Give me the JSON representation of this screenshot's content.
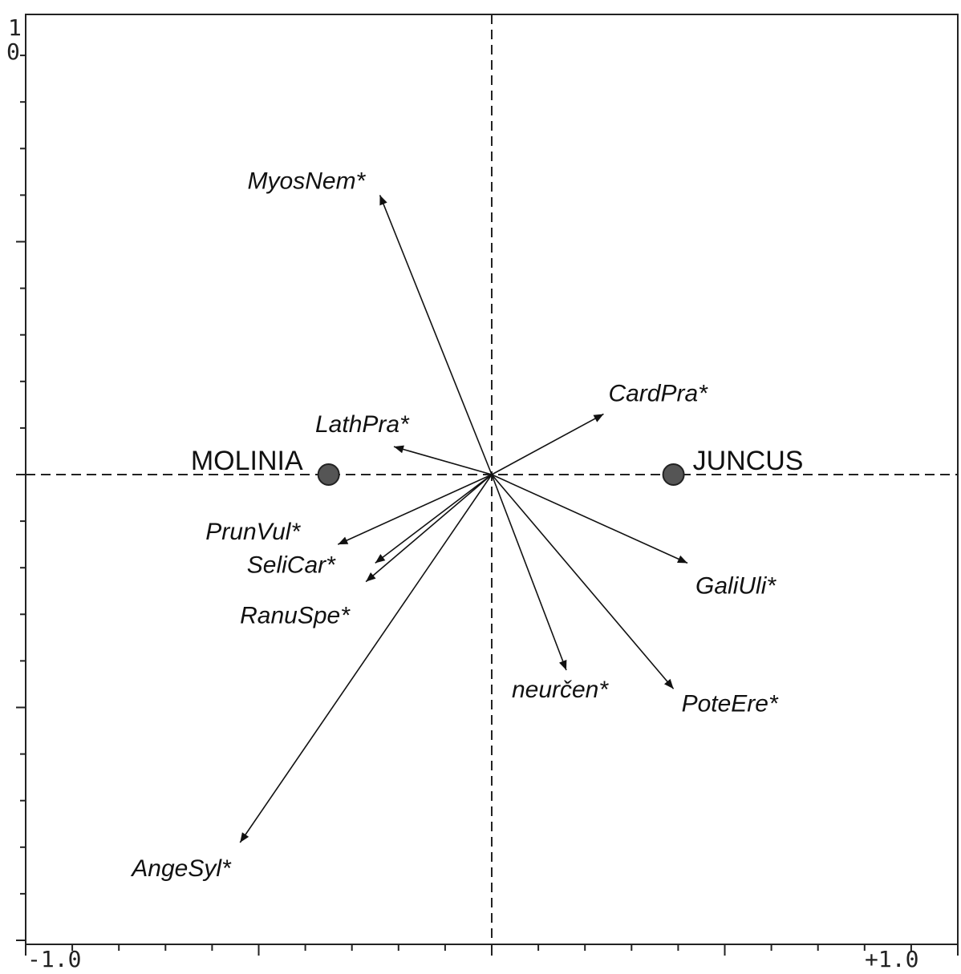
{
  "chart_data": {
    "type": "scatter",
    "title": "",
    "xlabel": "",
    "ylabel": "",
    "xlim": [
      -1.0,
      1.0
    ],
    "ylim": [
      -1.0,
      1.0
    ],
    "x_tick_labels": [
      "-1.0",
      "+1.0"
    ],
    "y_tick_labels": [
      "1",
      "0"
    ],
    "grid": false,
    "origin_lines": "dashed",
    "series": [
      {
        "kind": "arrows",
        "points": [
          {
            "label": "MyosNem*",
            "x": -0.24,
            "y": 0.6
          },
          {
            "label": "CardPra*",
            "x": 0.24,
            "y": 0.13
          },
          {
            "label": "LathPra*",
            "x": -0.21,
            "y": 0.06
          },
          {
            "label": "PrunVul*",
            "x": -0.33,
            "y": -0.15
          },
          {
            "label": "SeliCar*",
            "x": -0.25,
            "y": -0.19
          },
          {
            "label": "RanuSpe*",
            "x": -0.27,
            "y": -0.23
          },
          {
            "label": "GaliUli*",
            "x": 0.42,
            "y": -0.19
          },
          {
            "label": "neurčen*",
            "x": 0.16,
            "y": -0.42
          },
          {
            "label": "PoteEre*",
            "x": 0.39,
            "y": -0.46
          },
          {
            "label": "AngeSyl*",
            "x": -0.54,
            "y": -0.79
          }
        ]
      },
      {
        "kind": "points",
        "points": [
          {
            "label": "MOLINIA",
            "x": -0.35,
            "y": 0.0
          },
          {
            "label": "JUNCUS",
            "x": 0.39,
            "y": 0.0
          }
        ]
      }
    ],
    "colors": {
      "axis": "#222222",
      "arrow": "#111111",
      "marker": "#555555",
      "marker_stroke": "#222222"
    }
  }
}
